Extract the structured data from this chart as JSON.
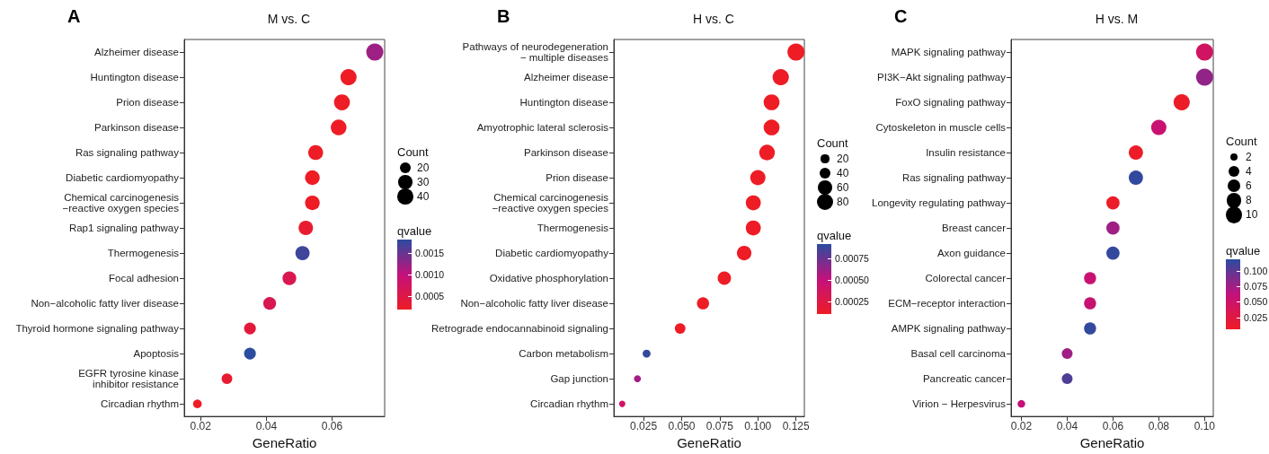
{
  "chart_data": [
    {
      "type": "bubble",
      "orientation": "horizontal",
      "title": "M vs. C",
      "annotations": [
        "A"
      ],
      "xlabel": "GeneRatio",
      "legend_title": "Count",
      "clabel": "qvalue",
      "grid": false,
      "marker": "circle",
      "categories": [
        "Alzheimer disease",
        "Huntington disease",
        "Prion disease",
        "Parkinson disease",
        "Ras signaling pathway",
        "Diabetic cardiomyopathy",
        "Chemical carcinogenesis\n−reactive oxygen species",
        "Rap1 signaling pathway",
        "Thermogenesis",
        "Focal adhesion",
        "Non−alcoholic fatty liver disease",
        "Thyroid hormone signaling pathway",
        "Apoptosis",
        "EGFR tyrosine kinase\ninhibitor resistance",
        "Circadian rhythm"
      ],
      "values": [
        0.073,
        0.065,
        0.063,
        0.062,
        0.055,
        0.054,
        0.054,
        0.052,
        0.051,
        0.047,
        0.041,
        0.035,
        0.035,
        0.028,
        0.019
      ],
      "sizes": [
        46,
        41,
        40,
        39,
        35,
        34,
        34,
        33,
        32,
        30,
        26,
        22,
        22,
        18,
        12
      ],
      "cvalues": [
        0.0012,
        0.0002,
        0.0002,
        0.0002,
        0.0002,
        0.0002,
        0.0002,
        0.0003,
        0.0017,
        0.0006,
        0.0006,
        0.0004,
        0.0018,
        0.0003,
        0.0002
      ],
      "size_legend": [
        20,
        30,
        40
      ],
      "xlim": [
        0.015,
        0.076
      ],
      "xticks": [
        0.02,
        0.04,
        0.06
      ],
      "clim": [
        0.0002,
        0.0018
      ],
      "cticks": [
        0.0005,
        {
          "value": 0.001,
          "label": "0.0010"
        },
        0.0015
      ]
    },
    {
      "type": "bubble",
      "orientation": "horizontal",
      "title": "H vs. C",
      "annotations": [
        "B"
      ],
      "xlabel": "GeneRatio",
      "legend_title": "Count",
      "clabel": "qvalue",
      "grid": false,
      "marker": "circle",
      "categories": [
        "Pathways of neurodegeneration\n− multiple diseases",
        "Alzheimer disease",
        "Huntington disease",
        "Amyotrophic lateral sclerosis",
        "Parkinson disease",
        "Prion disease",
        "Chemical carcinogenesis\n−reactive oxygen species",
        "Thermogenesis",
        "Diabetic cardiomyopathy",
        "Oxidative phosphorylation",
        "Non−alcoholic fatty liver disease",
        "Retrograde endocannabinoid signaling",
        "Carbon metabolism",
        "Gap junction",
        "Circadian rhythm"
      ],
      "values": [
        0.125,
        0.115,
        0.109,
        0.109,
        0.106,
        0.1,
        0.097,
        0.097,
        0.091,
        0.078,
        0.064,
        0.049,
        0.027,
        0.021,
        0.011
      ],
      "sizes": [
        88,
        80,
        76,
        76,
        74,
        70,
        68,
        68,
        64,
        54,
        45,
        34,
        19,
        15,
        12
      ],
      "cvalues": [
        0.0001,
        0.0001,
        0.0001,
        0.0001,
        0.0001,
        0.0001,
        0.0001,
        0.0001,
        0.0001,
        0.0001,
        0.0001,
        0.0001,
        0.0009,
        0.0006,
        0.0004
      ],
      "size_legend": [
        20,
        40,
        60,
        80
      ],
      "xlim": [
        0.0055,
        0.1305
      ],
      "xticks": [
        {
          "value": 0.025,
          "label": "0.025"
        },
        {
          "value": 0.05,
          "label": "0.050"
        },
        {
          "value": 0.075,
          "label": "0.075"
        },
        {
          "value": 0.1,
          "label": "0.100"
        },
        {
          "value": 0.125,
          "label": "0.125"
        }
      ],
      "clim": [
        0.0001,
        0.00092
      ],
      "cticks": [
        {
          "value": 0.00025,
          "label": "0.00025"
        },
        {
          "value": 0.0005,
          "label": "0.00050"
        },
        {
          "value": 0.00075,
          "label": "0.00075"
        }
      ]
    },
    {
      "type": "bubble",
      "orientation": "horizontal",
      "title": "H vs. M",
      "annotations": [
        "C"
      ],
      "xlabel": "GeneRatio",
      "legend_title": "Count",
      "clabel": "qvalue",
      "grid": false,
      "marker": "circle",
      "categories": [
        "MAPK signaling pathway",
        "PI3K−Akt signaling pathway",
        "FoxO signaling pathway",
        "Cytoskeleton in muscle cells",
        "Insulin resistance",
        "Ras signaling pathway",
        "Longevity regulating pathway",
        "Breast cancer",
        "Axon guidance",
        "Colorectal cancer",
        "ECM−receptor interaction",
        "AMPK signaling pathway",
        "Basal cell carcinoma",
        "Pancreatic cancer",
        "Virion − Herpesvirus"
      ],
      "values": [
        0.1,
        0.1,
        0.09,
        0.08,
        0.07,
        0.07,
        0.06,
        0.06,
        0.06,
        0.05,
        0.05,
        0.05,
        0.04,
        0.04,
        0.02
      ],
      "sizes": [
        10,
        10,
        9,
        8,
        7,
        7,
        6,
        6,
        6,
        5,
        5,
        5,
        4,
        4,
        2
      ],
      "cvalues": [
        0.045,
        0.08,
        0.008,
        0.055,
        0.008,
        0.115,
        0.008,
        0.075,
        0.115,
        0.055,
        0.055,
        0.115,
        0.075,
        0.105,
        0.06
      ],
      "size_legend": [
        2,
        4,
        6,
        8,
        10
      ],
      "xlim": [
        0.0155,
        0.1038
      ],
      "xticks": [
        0.02,
        0.04,
        0.06,
        0.08,
        {
          "value": 0.1,
          "label": "0.10"
        }
      ],
      "clim": [
        0.006,
        0.118
      ],
      "cticks": [
        {
          "value": 0.025,
          "label": "0.025"
        },
        {
          "value": 0.05,
          "label": "0.050"
        },
        {
          "value": 0.075,
          "label": "0.075"
        },
        {
          "value": 0.1,
          "label": "0.100"
        }
      ]
    }
  ]
}
